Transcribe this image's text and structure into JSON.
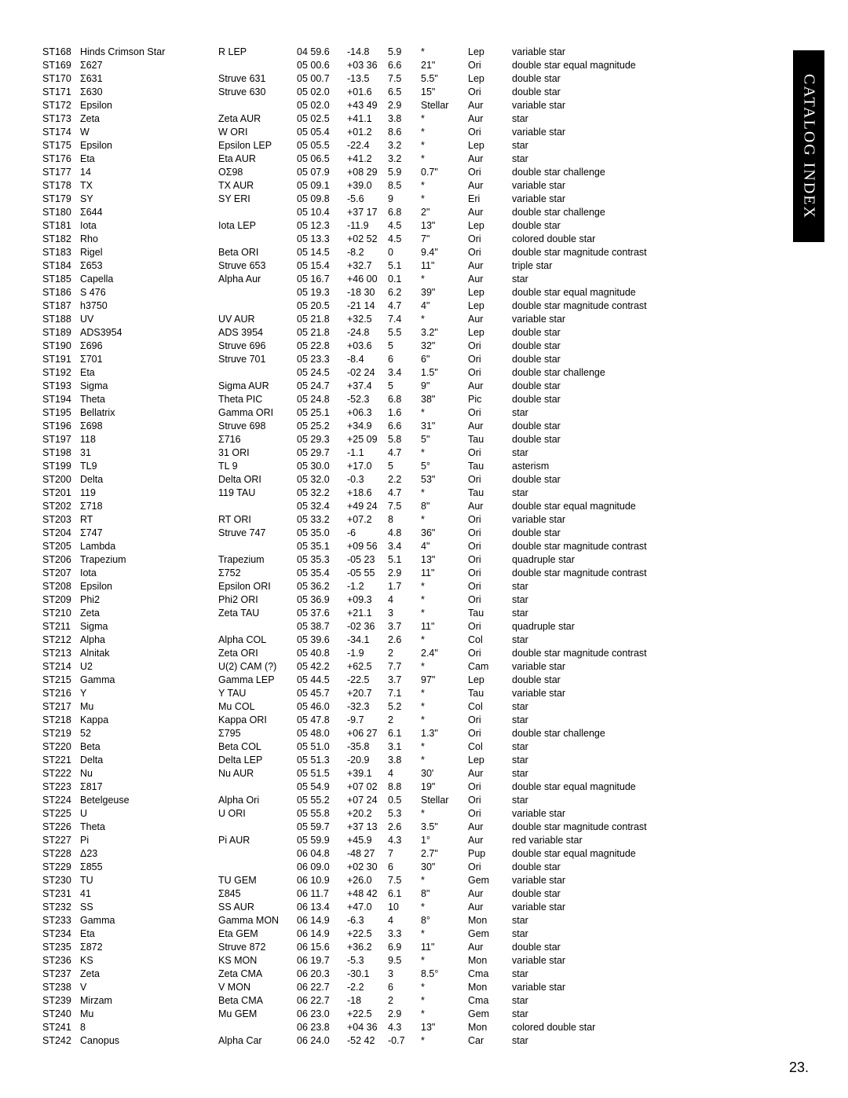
{
  "sidebar_label": "CATALOG INDEX",
  "page_number": "23.",
  "columns": [
    "id",
    "name",
    "alt",
    "ra",
    "v1",
    "v2",
    "sep",
    "con",
    "desc"
  ],
  "rows": [
    [
      "ST168",
      "Hinds Crimson Star",
      "R LEP",
      "04 59.6",
      "-14.8",
      "5.9",
      "*",
      "Lep",
      "variable star"
    ],
    [
      "ST169",
      "Σ627",
      "",
      "05 00.6",
      "+03 36",
      "6.6",
      "21\"",
      "Ori",
      "double star equal magnitude"
    ],
    [
      "ST170",
      "Σ631",
      "Struve 631",
      "05 00.7",
      "-13.5",
      "7.5",
      "5.5\"",
      "Lep",
      "double star"
    ],
    [
      "ST171",
      "Σ630",
      "Struve 630",
      "05 02.0",
      "+01.6",
      "6.5",
      "15\"",
      "Ori",
      "double star"
    ],
    [
      "ST172",
      "Epsilon",
      "",
      "05 02.0",
      "+43 49",
      "2.9",
      "Stellar",
      "Aur",
      "variable star"
    ],
    [
      "ST173",
      "Zeta",
      "Zeta AUR",
      "05 02.5",
      "+41.1",
      "3.8",
      "*",
      "Aur",
      "star"
    ],
    [
      "ST174",
      "W",
      "W ORI",
      "05 05.4",
      "+01.2",
      "8.6",
      "*",
      "Ori",
      "variable star"
    ],
    [
      "ST175",
      "Epsilon",
      "Epsilon LEP",
      "05 05.5",
      "-22.4",
      "3.2",
      "*",
      "Lep",
      "star"
    ],
    [
      "ST176",
      "Eta",
      "Eta AUR",
      "05 06.5",
      "+41.2",
      "3.2",
      "*",
      "Aur",
      "star"
    ],
    [
      "ST177",
      "14",
      "OΣ98",
      "05 07.9",
      "+08 29",
      "5.9",
      "0.7\"",
      "Ori",
      "double star challenge"
    ],
    [
      "ST178",
      "TX",
      "TX AUR",
      "05 09.1",
      "+39.0",
      "8.5",
      "*",
      "Aur",
      "variable star"
    ],
    [
      "ST179",
      "SY",
      "SY ERI",
      "05 09.8",
      "-5.6",
      "9",
      "*",
      "Eri",
      "variable star"
    ],
    [
      "ST180",
      "Σ644",
      "",
      "05 10.4",
      "+37 17",
      "6.8",
      "2\"",
      "Aur",
      "double star challenge"
    ],
    [
      "ST181",
      "Iota",
      "Iota LEP",
      "05 12.3",
      "-11.9",
      "4.5",
      "13\"",
      "Lep",
      "double star"
    ],
    [
      "ST182",
      "Rho",
      "",
      "05 13.3",
      "+02 52",
      "4.5",
      "7\"",
      "Ori",
      "colored double star"
    ],
    [
      "ST183",
      "Rigel",
      "Beta ORI",
      "05 14.5",
      "-8.2",
      "0",
      "9.4\"",
      "Ori",
      "double star magnitude contrast"
    ],
    [
      "ST184",
      "Σ653",
      "Struve 653",
      "05 15.4",
      "+32.7",
      "5.1",
      "11\"",
      "Aur",
      "triple star"
    ],
    [
      "ST185",
      "Capella",
      "Alpha Aur",
      "05 16.7",
      "+46 00",
      "0.1",
      "*",
      "Aur",
      "star"
    ],
    [
      "ST186",
      "S 476",
      "",
      "05 19.3",
      "-18 30",
      "6.2",
      "39\"",
      "Lep",
      "double star equal magnitude"
    ],
    [
      "ST187",
      "h3750",
      "",
      "05 20.5",
      "-21 14",
      "4.7",
      "4\"",
      "Lep",
      "double star magnitude contrast"
    ],
    [
      "ST188",
      "UV",
      "UV AUR",
      "05 21.8",
      "+32.5",
      "7.4",
      "*",
      "Aur",
      "variable star"
    ],
    [
      "ST189",
      "ADS3954",
      "ADS 3954",
      "05 21.8",
      "-24.8",
      "5.5",
      "3.2\"",
      "Lep",
      "double star"
    ],
    [
      "ST190",
      "Σ696",
      "Struve 696",
      "05 22.8",
      "+03.6",
      "5",
      "32\"",
      "Ori",
      "double star"
    ],
    [
      "ST191",
      "Σ701",
      "Struve 701",
      "05 23.3",
      "-8.4",
      "6",
      "6\"",
      "Ori",
      "double star"
    ],
    [
      "ST192",
      "Eta",
      "",
      "05 24.5",
      "-02 24",
      "3.4",
      "1.5\"",
      "Ori",
      "double star challenge"
    ],
    [
      "ST193",
      "Sigma",
      "Sigma AUR",
      "05 24.7",
      "+37.4",
      "5",
      "9\"",
      "Aur",
      "double star"
    ],
    [
      "ST194",
      "Theta",
      "Theta PIC",
      "05 24.8",
      "-52.3",
      "6.8",
      "38\"",
      "Pic",
      "double star"
    ],
    [
      "ST195",
      "Bellatrix",
      "Gamma ORI",
      "05 25.1",
      "+06.3",
      "1.6",
      "*",
      "Ori",
      "star"
    ],
    [
      "ST196",
      "Σ698",
      "Struve 698",
      "05 25.2",
      "+34.9",
      "6.6",
      "31\"",
      "Aur",
      "double star"
    ],
    [
      "ST197",
      "118",
      "Σ716",
      "05 29.3",
      "+25 09",
      "5.8",
      "5\"",
      "Tau",
      "double star"
    ],
    [
      "ST198",
      "31",
      "31 ORI",
      "05 29.7",
      "-1.1",
      "4.7",
      "*",
      "Ori",
      "star"
    ],
    [
      "ST199",
      "TL9",
      "TL 9",
      "05 30.0",
      "+17.0",
      "5",
      "5°",
      "Tau",
      "asterism"
    ],
    [
      "ST200",
      "Delta",
      "Delta ORI",
      "05 32.0",
      "-0.3",
      "2.2",
      "53\"",
      "Ori",
      "double star"
    ],
    [
      "ST201",
      "119",
      "119 TAU",
      "05 32.2",
      "+18.6",
      "4.7",
      "*",
      "Tau",
      "star"
    ],
    [
      "ST202",
      "Σ718",
      "",
      "05 32.4",
      "+49 24",
      "7.5",
      "8\"",
      "Aur",
      "double star equal magnitude"
    ],
    [
      "ST203",
      "RT",
      "RT ORI",
      "05 33.2",
      "+07.2",
      "8",
      "*",
      "Ori",
      "variable star"
    ],
    [
      "ST204",
      "Σ747",
      "Struve 747",
      "05 35.0",
      "-6",
      "4.8",
      "36\"",
      "Ori",
      "double star"
    ],
    [
      "ST205",
      "Lambda",
      "",
      "05 35.1",
      "+09 56",
      "3.4",
      "4\"",
      "Ori",
      "double star magnitude contrast"
    ],
    [
      "ST206",
      "Trapezium",
      "Trapezium",
      "05 35.3",
      "-05 23",
      "5.1",
      "13\"",
      "Ori",
      "quadruple star"
    ],
    [
      "ST207",
      "Iota",
      "Σ752",
      "05 35.4",
      "-05 55",
      "2.9",
      "11\"",
      "Ori",
      "double star magnitude contrast"
    ],
    [
      "ST208",
      "Epsilon",
      "Epsilon ORI",
      "05 36.2",
      "-1.2",
      "1.7",
      "*",
      "Ori",
      "star"
    ],
    [
      "ST209",
      "Phi2",
      "Phi2 ORI",
      "05 36.9",
      "+09.3",
      "4",
      "*",
      "Ori",
      "star"
    ],
    [
      "ST210",
      "Zeta",
      "Zeta TAU",
      "05 37.6",
      "+21.1",
      "3",
      "*",
      "Tau",
      "star"
    ],
    [
      "ST211",
      "Sigma",
      "",
      "05 38.7",
      "-02 36",
      "3.7",
      "11\"",
      "Ori",
      "quadruple star"
    ],
    [
      "ST212",
      "Alpha",
      "Alpha COL",
      "05 39.6",
      "-34.1",
      "2.6",
      "*",
      "Col",
      "star"
    ],
    [
      "ST213",
      "Alnitak",
      "Zeta ORI",
      "05 40.8",
      "-1.9",
      "2",
      "2.4\"",
      "Ori",
      "double star magnitude contrast"
    ],
    [
      "ST214",
      "U2",
      "U(2) CAM (?)",
      "05 42.2",
      "+62.5",
      "7.7",
      "*",
      "Cam",
      "variable star"
    ],
    [
      "ST215",
      "Gamma",
      "Gamma LEP",
      "05 44.5",
      "-22.5",
      "3.7",
      "97\"",
      "Lep",
      "double star"
    ],
    [
      "ST216",
      "Y",
      "Y TAU",
      "05 45.7",
      "+20.7",
      "7.1",
      "*",
      "Tau",
      "variable star"
    ],
    [
      "ST217",
      "Mu",
      "Mu COL",
      "05 46.0",
      "-32.3",
      "5.2",
      "*",
      "Col",
      "star"
    ],
    [
      "ST218",
      "Kappa",
      "Kappa ORI",
      "05 47.8",
      "-9.7",
      "2",
      "*",
      "Ori",
      "star"
    ],
    [
      "ST219",
      "52",
      "Σ795",
      "05 48.0",
      "+06 27",
      "6.1",
      "1.3\"",
      "Ori",
      "double star challenge"
    ],
    [
      "ST220",
      "Beta",
      "Beta COL",
      "05 51.0",
      "-35.8",
      "3.1",
      "*",
      "Col",
      "star"
    ],
    [
      "ST221",
      "Delta",
      "Delta LEP",
      "05 51.3",
      "-20.9",
      "3.8",
      "*",
      "Lep",
      "star"
    ],
    [
      "ST222",
      "Nu",
      "Nu AUR",
      "05 51.5",
      "+39.1",
      "4",
      "30'",
      "Aur",
      "star"
    ],
    [
      "ST223",
      "Σ817",
      "",
      "05 54.9",
      "+07 02",
      "8.8",
      "19\"",
      "Ori",
      "double star equal magnitude"
    ],
    [
      "ST224",
      "Betelgeuse",
      "Alpha Ori",
      "05 55.2",
      "+07 24",
      "0.5",
      "Stellar",
      "Ori",
      "star"
    ],
    [
      "ST225",
      "U",
      "U ORI",
      "05 55.8",
      "+20.2",
      "5.3",
      "*",
      "Ori",
      "variable star"
    ],
    [
      "ST226",
      "Theta",
      "",
      "05 59.7",
      "+37 13",
      "2.6",
      "3.5\"",
      "Aur",
      "double star magnitude contrast"
    ],
    [
      "ST227",
      "Pi",
      "Pi AUR",
      "05 59.9",
      "+45.9",
      "4.3",
      "1°",
      "Aur",
      "red variable star"
    ],
    [
      "ST228",
      "Δ23",
      "",
      "06 04.8",
      "-48 27",
      "7",
      "2.7\"",
      "Pup",
      "double star equal magnitude"
    ],
    [
      "ST229",
      "Σ855",
      "",
      "06 09.0",
      "+02 30",
      "6",
      "30\"",
      "Ori",
      "double star"
    ],
    [
      "ST230",
      "TU",
      "TU GEM",
      "06 10.9",
      "+26.0",
      "7.5",
      "*",
      "Gem",
      "variable star"
    ],
    [
      "ST231",
      "41",
      "Σ845",
      "06 11.7",
      "+48 42",
      "6.1",
      "8\"",
      "Aur",
      "double star"
    ],
    [
      "ST232",
      "SS",
      "SS AUR",
      "06 13.4",
      "+47.0",
      "10",
      "*",
      "Aur",
      "variable star"
    ],
    [
      "ST233",
      "Gamma",
      "Gamma MON",
      "06 14.9",
      "-6.3",
      "4",
      "8°",
      "Mon",
      "star"
    ],
    [
      "ST234",
      "Eta",
      "Eta GEM",
      "06 14.9",
      "+22.5",
      "3.3",
      "*",
      "Gem",
      "star"
    ],
    [
      "ST235",
      "Σ872",
      "Struve 872",
      "06 15.6",
      "+36.2",
      "6.9",
      "11\"",
      "Aur",
      "double star"
    ],
    [
      "ST236",
      "KS",
      "KS MON",
      "06 19.7",
      "-5.3",
      "9.5",
      "*",
      "Mon",
      "variable star"
    ],
    [
      "ST237",
      "Zeta",
      "Zeta CMA",
      "06 20.3",
      "-30.1",
      "3",
      "8.5°",
      "Cma",
      "star"
    ],
    [
      "ST238",
      "V",
      "V MON",
      "06 22.7",
      "-2.2",
      "6",
      "*",
      "Mon",
      "variable star"
    ],
    [
      "ST239",
      "Mirzam",
      "Beta CMA",
      "06 22.7",
      "-18",
      "2",
      "*",
      "Cma",
      "star"
    ],
    [
      "ST240",
      "Mu",
      "Mu GEM",
      "06 23.0",
      "+22.5",
      "2.9",
      "*",
      "Gem",
      "star"
    ],
    [
      "ST241",
      "8",
      "",
      "06 23.8",
      "+04 36",
      "4.3",
      "13\"",
      "Mon",
      "colored double star"
    ],
    [
      "ST242",
      "Canopus",
      "Alpha Car",
      "06 24.0",
      "-52 42",
      "-0.7",
      "*",
      "Car",
      "star"
    ]
  ]
}
